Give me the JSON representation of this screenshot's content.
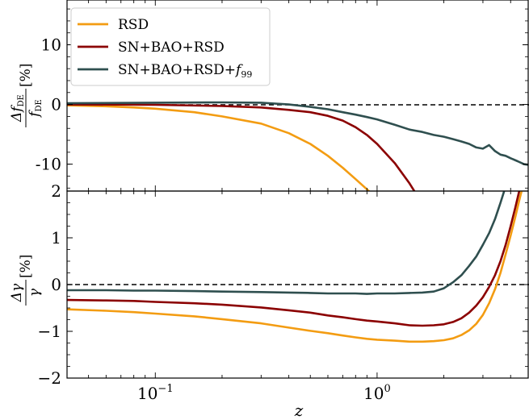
{
  "chart_data": [
    {
      "type": "line",
      "panel": "top",
      "ylabel": {
        "numerator": "Δf",
        "numerator_sub": "DE",
        "denominator": "f",
        "denominator_sub": "DE",
        "suffix": "[%]"
      },
      "xscale": "log",
      "xlim": [
        0.04,
        4.8
      ],
      "ylim": [
        -14.5,
        17.5
      ],
      "yticks": [
        10,
        0,
        -10
      ],
      "ytick_labels": [
        "10",
        "0",
        "-10"
      ],
      "reference_line": 0,
      "legend": {
        "placement": "top-left",
        "entries": [
          "RSD",
          "SN+BAO+RSD",
          "SN+BAO+RSD+f99"
        ]
      },
      "series": [
        {
          "name": "RSD",
          "color": "#f39c12",
          "x": [
            0.04,
            0.06,
            0.08,
            0.1,
            0.15,
            0.2,
            0.3,
            0.4,
            0.5,
            0.6,
            0.7,
            0.8,
            0.9,
            0.95
          ],
          "y": [
            -0.15,
            -0.3,
            -0.5,
            -0.7,
            -1.3,
            -2.0,
            -3.2,
            -4.8,
            -6.6,
            -8.6,
            -10.6,
            -12.5,
            -14.2,
            -15.0
          ]
        },
        {
          "name": "SN+BAO+RSD",
          "color": "#8b0000",
          "x": [
            0.04,
            0.1,
            0.2,
            0.3,
            0.4,
            0.5,
            0.6,
            0.7,
            0.8,
            0.9,
            1.0,
            1.2,
            1.4,
            1.5
          ],
          "y": [
            0.0,
            -0.05,
            -0.25,
            -0.5,
            -0.9,
            -1.3,
            -1.9,
            -2.7,
            -3.8,
            -5.1,
            -6.6,
            -9.8,
            -13.2,
            -15.0
          ]
        },
        {
          "name": "SN+BAO+RSD+f99",
          "color": "#2f4f4f",
          "x": [
            0.04,
            0.1,
            0.2,
            0.3,
            0.4,
            0.5,
            0.6,
            0.7,
            0.8,
            0.9,
            1.0,
            1.2,
            1.4,
            1.6,
            1.8,
            2.0,
            2.2,
            2.4,
            2.6,
            2.8,
            3.0,
            3.2,
            3.4,
            3.6,
            3.8,
            4.0,
            4.3,
            4.6,
            4.8
          ],
          "y": [
            0.2,
            0.3,
            0.35,
            0.3,
            0.0,
            -0.4,
            -0.8,
            -1.3,
            -1.7,
            -2.1,
            -2.5,
            -3.4,
            -4.2,
            -4.6,
            -5.1,
            -5.4,
            -5.8,
            -6.2,
            -6.6,
            -7.2,
            -7.4,
            -6.8,
            -7.8,
            -8.4,
            -8.6,
            -9.0,
            -9.5,
            -10.0,
            -10.1
          ]
        }
      ]
    },
    {
      "type": "line",
      "panel": "bottom",
      "ylabel": {
        "numerator": "Δγ",
        "denominator": "γ",
        "suffix": "[%]"
      },
      "xlabel": "z",
      "xscale": "log",
      "xlim": [
        0.04,
        4.8
      ],
      "ylim": [
        -2,
        2
      ],
      "yticks": [
        2,
        1,
        0,
        -1,
        -2
      ],
      "ytick_labels": [
        "2",
        "1",
        "0",
        "−1",
        "−2"
      ],
      "xticks": [
        0.1,
        1.0
      ],
      "xtick_labels": [
        {
          "base": "10",
          "exp": "−1"
        },
        {
          "base": "10",
          "exp": "0"
        }
      ],
      "reference_line": 0,
      "series": [
        {
          "name": "RSD",
          "color": "#f39c12",
          "x": [
            0.04,
            0.06,
            0.08,
            0.1,
            0.15,
            0.2,
            0.3,
            0.4,
            0.5,
            0.6,
            0.7,
            0.8,
            0.9,
            1.0,
            1.2,
            1.4,
            1.6,
            1.8,
            2.0,
            2.2,
            2.4,
            2.6,
            2.8,
            3.0,
            3.2,
            3.4,
            3.6,
            3.8,
            4.0,
            4.2,
            4.4,
            4.6,
            4.8
          ],
          "y": [
            -0.53,
            -0.56,
            -0.59,
            -0.62,
            -0.68,
            -0.74,
            -0.83,
            -0.92,
            -0.99,
            -1.04,
            -1.09,
            -1.13,
            -1.16,
            -1.18,
            -1.2,
            -1.22,
            -1.22,
            -1.21,
            -1.19,
            -1.15,
            -1.08,
            -0.98,
            -0.84,
            -0.65,
            -0.4,
            -0.1,
            0.25,
            0.65,
            1.05,
            1.45,
            1.85,
            2.2,
            2.4
          ]
        },
        {
          "name": "SN+BAO+RSD",
          "color": "#8b0000",
          "x": [
            0.04,
            0.06,
            0.08,
            0.1,
            0.15,
            0.2,
            0.3,
            0.4,
            0.5,
            0.6,
            0.7,
            0.8,
            0.9,
            1.0,
            1.2,
            1.4,
            1.6,
            1.8,
            2.0,
            2.2,
            2.4,
            2.6,
            2.8,
            3.0,
            3.2,
            3.4,
            3.6,
            3.8,
            4.0,
            4.2,
            4.4,
            4.6,
            4.8
          ],
          "y": [
            -0.33,
            -0.34,
            -0.35,
            -0.37,
            -0.4,
            -0.43,
            -0.49,
            -0.55,
            -0.6,
            -0.66,
            -0.7,
            -0.74,
            -0.77,
            -0.79,
            -0.83,
            -0.87,
            -0.88,
            -0.87,
            -0.85,
            -0.8,
            -0.72,
            -0.6,
            -0.45,
            -0.27,
            -0.05,
            0.2,
            0.5,
            0.85,
            1.25,
            1.65,
            2.05,
            2.35,
            2.5
          ]
        },
        {
          "name": "SN+BAO+RSD+f99",
          "color": "#2f4f4f",
          "x": [
            0.04,
            0.06,
            0.08,
            0.1,
            0.15,
            0.2,
            0.3,
            0.4,
            0.5,
            0.6,
            0.7,
            0.8,
            0.9,
            1.0,
            1.2,
            1.4,
            1.6,
            1.8,
            2.0,
            2.2,
            2.4,
            2.6,
            2.8,
            3.0,
            3.2,
            3.4,
            3.6,
            3.8,
            4.0,
            4.2
          ],
          "y": [
            -0.12,
            -0.12,
            -0.13,
            -0.13,
            -0.14,
            -0.15,
            -0.16,
            -0.17,
            -0.18,
            -0.19,
            -0.19,
            -0.19,
            -0.2,
            -0.19,
            -0.19,
            -0.18,
            -0.17,
            -0.15,
            -0.08,
            0.05,
            0.2,
            0.4,
            0.6,
            0.85,
            1.1,
            1.4,
            1.75,
            2.1,
            2.4,
            2.6
          ]
        }
      ]
    }
  ]
}
